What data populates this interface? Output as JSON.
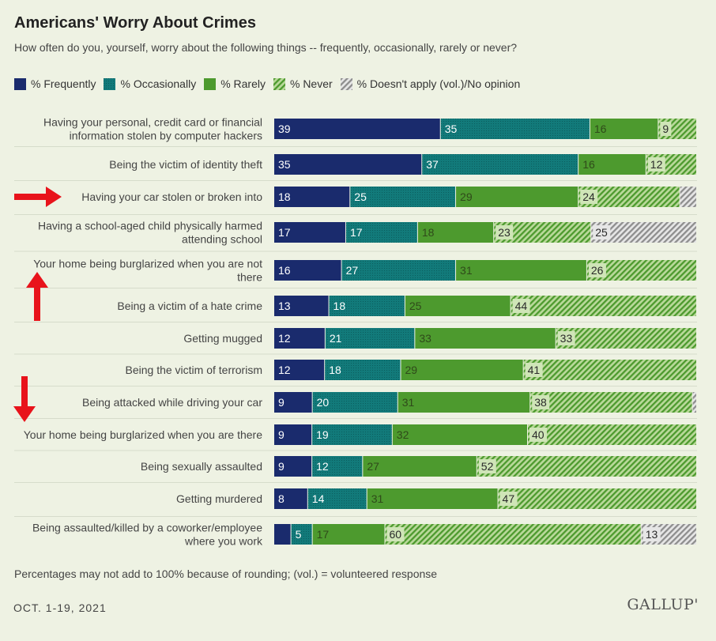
{
  "header": {
    "title": "Americans' Worry About Crimes",
    "subtitle": "How often do you, yourself, worry about the following things -- frequently, occasionally, rarely or never?"
  },
  "legend": [
    {
      "label": "% Frequently",
      "color": "#1a2b6d",
      "pattern": "solid"
    },
    {
      "label": "% Occasionally",
      "color": "#127a7a",
      "pattern": "dots"
    },
    {
      "label": "% Rarely",
      "color": "#4d9a2e",
      "pattern": "solid"
    },
    {
      "label": "% Never",
      "color": "#62a83a",
      "pattern": "hatch"
    },
    {
      "label": "% Doesn't apply (vol.)/No opinion",
      "color": "#9a9a9a",
      "pattern": "hatch"
    }
  ],
  "chart_data": {
    "type": "bar",
    "orientation": "horizontal",
    "stacked": true,
    "title": "Americans' Worry About Crimes",
    "categories": [
      [
        "Having your personal, credit card or financial",
        "information stolen by computer hackers"
      ],
      [
        "Being the victim of identity theft"
      ],
      [
        "Having your car stolen or broken into"
      ],
      [
        "Having a school-aged child physically harmed",
        "attending school"
      ],
      [
        "Your home being burglarized when you are not",
        "there"
      ],
      [
        "Being a victim of a hate crime"
      ],
      [
        "Getting mugged"
      ],
      [
        "Being the victim of terrorism"
      ],
      [
        "Being attacked while driving your car"
      ],
      [
        "Your home being burglarized when you are there"
      ],
      [
        "Being sexually assaulted"
      ],
      [
        "Getting murdered"
      ],
      [
        "Being assaulted/killed by a coworker/employee",
        "where you work"
      ]
    ],
    "series": [
      {
        "name": "% Frequently",
        "values": [
          39,
          35,
          18,
          17,
          16,
          13,
          12,
          12,
          9,
          9,
          9,
          8,
          4
        ],
        "labels": [
          "39",
          "35",
          "18",
          "17",
          "16",
          "13",
          "12",
          "12",
          "9",
          "9",
          "9",
          "8",
          ""
        ]
      },
      {
        "name": "% Occasionally",
        "values": [
          35,
          37,
          25,
          17,
          27,
          18,
          21,
          18,
          20,
          19,
          12,
          14,
          5
        ],
        "labels": [
          "35",
          "37",
          "25",
          "17",
          "27",
          "18",
          "21",
          "18",
          "20",
          "19",
          "12",
          "14",
          "5"
        ]
      },
      {
        "name": "% Rarely",
        "values": [
          16,
          16,
          29,
          18,
          31,
          25,
          33,
          29,
          31,
          32,
          27,
          31,
          17
        ],
        "labels": [
          "16",
          "16",
          "29",
          "18",
          "31",
          "25",
          "33",
          "29",
          "31",
          "32",
          "27",
          "31",
          "17"
        ]
      },
      {
        "name": "% Never",
        "values": [
          9,
          12,
          24,
          23,
          26,
          44,
          33,
          41,
          38,
          40,
          52,
          47,
          60
        ],
        "labels": [
          "9",
          "12",
          "24",
          "23",
          "26",
          "44",
          "33",
          "41",
          "38",
          "40",
          "52",
          "47",
          "60"
        ]
      },
      {
        "name": "% Doesn't apply (vol.)/No opinion",
        "values": [
          0,
          0,
          4,
          25,
          0,
          0,
          0,
          0,
          1,
          0,
          0,
          0,
          13
        ],
        "labels": [
          "",
          "",
          "",
          "25",
          "",
          "",
          "",
          "",
          "",
          "",
          "",
          "",
          "13"
        ]
      }
    ],
    "xlim": [
      0,
      100
    ],
    "grid": false,
    "legend_position": "top"
  },
  "annotations": {
    "right_arrow_row": 2,
    "up_arrow_row": 4,
    "down_arrow_row": 9,
    "arrow_color": "#e8131b"
  },
  "footer": {
    "note": "Percentages may not add to 100% because of rounding; (vol.) = volunteered response",
    "date": "OCT. 1-19, 2021",
    "logo": "GALLUP'"
  }
}
